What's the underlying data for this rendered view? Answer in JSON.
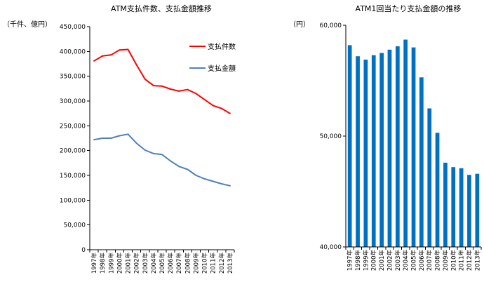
{
  "chart_data": [
    {
      "type": "line",
      "title": "ATM支払件数、支払金額推移",
      "unit_label": "（千件、億円）",
      "categories": [
        "1997年",
        "1998年",
        "1999年",
        "2000年",
        "2001年",
        "2002年",
        "2003年",
        "2004年",
        "2005年",
        "2006年",
        "2007年",
        "2008年",
        "2009年",
        "2010年",
        "2011年",
        "2012年",
        "2013年"
      ],
      "ylim": [
        0,
        450000
      ],
      "yticks": [
        0,
        50000,
        100000,
        150000,
        200000,
        250000,
        300000,
        350000,
        400000,
        450000
      ],
      "ytick_labels": [
        "0",
        "50,000",
        "100,000",
        "150,000",
        "200,000",
        "250,000",
        "300,000",
        "350,000",
        "400,000",
        "450,000"
      ],
      "grid": false,
      "legend_position": "right",
      "series": [
        {
          "name": "支払件数",
          "color": "#ff0000",
          "values": [
            381000,
            391000,
            393000,
            403000,
            404000,
            373000,
            344000,
            331000,
            330000,
            324000,
            320000,
            323000,
            315000,
            303000,
            291000,
            285000,
            275000
          ]
        },
        {
          "name": "支払金額",
          "color": "#4f81bd",
          "values": [
            222000,
            225000,
            225000,
            230000,
            233000,
            215000,
            201000,
            194000,
            192000,
            179000,
            168000,
            162000,
            150000,
            143000,
            138000,
            133000,
            129000
          ]
        }
      ]
    },
    {
      "type": "bar",
      "title": "ATM1回当たり支払金額の推移",
      "unit_label": "（円）",
      "categories": [
        "1997年",
        "1998年",
        "1999年",
        "2000年",
        "2001年",
        "2002年",
        "2003年",
        "2004年",
        "2005年",
        "2006年",
        "2007年",
        "2008年",
        "2009年",
        "2010年",
        "2011年",
        "2012年",
        "2013年"
      ],
      "ylim": [
        40000,
        60000
      ],
      "yticks": [
        40000,
        50000,
        60000
      ],
      "ytick_labels": [
        "40,000",
        "50,000",
        "60,000"
      ],
      "grid": false,
      "color": "#0070c0",
      "values": [
        58200,
        57200,
        56900,
        57300,
        57500,
        57800,
        58100,
        58700,
        58000,
        55300,
        52500,
        50300,
        47600,
        47200,
        47100,
        46500,
        46600
      ]
    }
  ]
}
